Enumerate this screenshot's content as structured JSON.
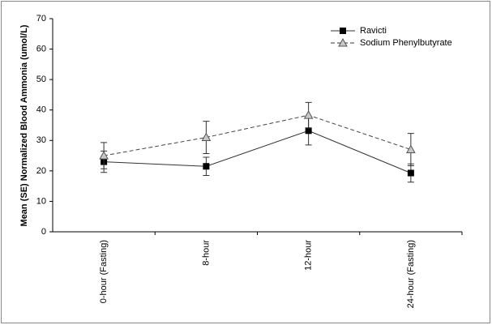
{
  "chart_data": {
    "type": "line",
    "y_label": "Mean (SE) Normalized Blood Ammonia (umol/L)",
    "categories": [
      "0-hour (Fasting)",
      "8-hour",
      "12-hour",
      "24-hour (Fasting)"
    ],
    "series": [
      {
        "name": "Ravicti",
        "color": "#000000",
        "marker": "square",
        "dashed": false,
        "values": [
          23,
          21.5,
          33.2,
          19.3
        ],
        "errors": [
          3.5,
          3,
          4.7,
          3
        ]
      },
      {
        "name": "Sodium Phenylbutyrate",
        "color": "#a0a0a0",
        "marker": "triangle",
        "dashed": true,
        "values": [
          25,
          31,
          38.3,
          27
        ],
        "errors": [
          4.3,
          5.3,
          4.2,
          5.3
        ]
      }
    ],
    "ylim": [
      0,
      70
    ],
    "yticks": [
      0,
      10,
      20,
      30,
      40,
      50,
      60,
      70
    ],
    "legend": "upper right"
  }
}
